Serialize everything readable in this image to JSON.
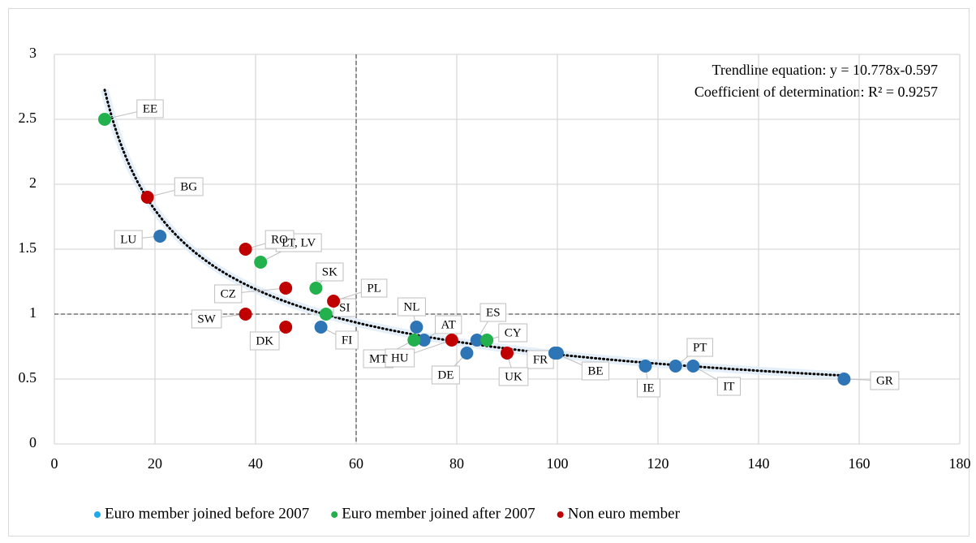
{
  "chart_data": {
    "type": "scatter",
    "annotations": [
      "Trendline equation: y = 10.778x-0.597",
      "Coefficient of determination: R² = 0.9257"
    ],
    "trendline": {
      "coefficient": 10.778,
      "exponent": -0.597
    },
    "reference_lines": {
      "x": 60,
      "y": 1
    },
    "xlim": [
      0,
      180
    ],
    "xticks": [
      0,
      20,
      40,
      60,
      80,
      100,
      120,
      140,
      160,
      180
    ],
    "ylim": [
      0,
      3
    ],
    "yticks": [
      0,
      0.5,
      1,
      1.5,
      2,
      2.5,
      3
    ],
    "grid": true,
    "series": [
      {
        "name": "Euro member joined before 2007",
        "color": "#2e75b6",
        "legend_color": "#1fa9e6",
        "labels": [
          "LU",
          "FI",
          "NL",
          "AT",
          "DE",
          "ES",
          "FR",
          "BE",
          "IE",
          "PT",
          "IT",
          "GR"
        ],
        "x": [
          21,
          53,
          72,
          73.5,
          82,
          84,
          100,
          99.5,
          117.5,
          123.5,
          127,
          157
        ],
        "values": [
          1.6,
          0.9,
          0.9,
          0.8,
          0.7,
          0.8,
          0.7,
          0.7,
          0.6,
          0.6,
          0.6,
          0.5
        ]
      },
      {
        "name": "Euro member joined after 2007",
        "color": "#22b14c",
        "legend_color": "#22b14c",
        "labels": [
          "EE",
          "LT, LV",
          "SK",
          "SI",
          "MT",
          "CY"
        ],
        "x": [
          10,
          41,
          52,
          54,
          71.5,
          86
        ],
        "values": [
          2.5,
          1.4,
          1.2,
          1,
          0.8,
          0.8
        ]
      },
      {
        "name": "Non euro member",
        "color": "#c00000",
        "legend_color": "#c00000",
        "labels": [
          "BG",
          "RO",
          "CZ",
          "PL",
          "SW",
          "DK",
          "HU",
          "UK"
        ],
        "x": [
          18.5,
          38,
          46,
          55.5,
          38,
          46,
          79,
          90
        ],
        "values": [
          1.9,
          1.5,
          1.2,
          1.1,
          1,
          0.9,
          0.8,
          0.7
        ]
      }
    ]
  }
}
